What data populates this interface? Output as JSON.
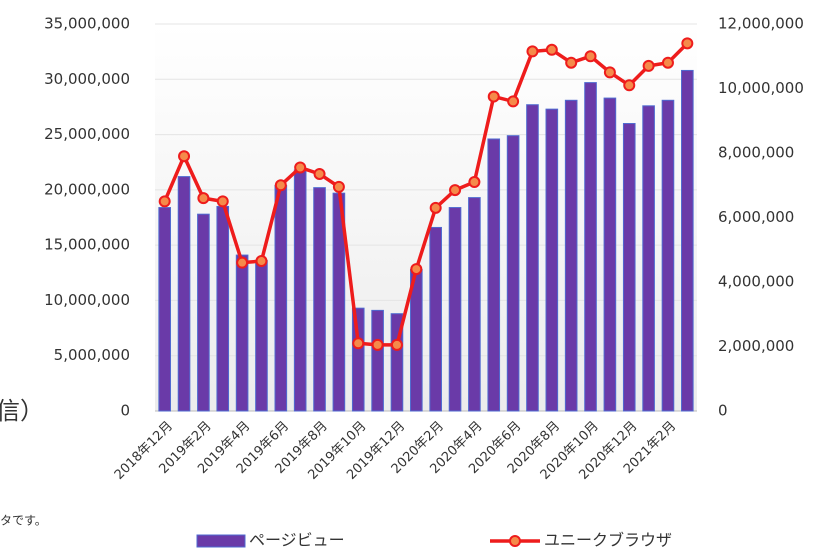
{
  "chart_data": {
    "type": "bar",
    "annotations": [
      "信）",
      "タです。"
    ],
    "categories": [
      "2018年12月",
      null,
      "2019年2月",
      null,
      "2019年4月",
      null,
      "2019年6月",
      null,
      "2019年8月",
      null,
      "2019年10月",
      null,
      "2019年12月",
      null,
      "2020年2月",
      null,
      "2020年4月",
      null,
      "2020年6月",
      null,
      "2020年8月",
      null,
      "2020年10月",
      null,
      "2020年12月",
      null,
      "2021年2月",
      null
    ],
    "series": [
      {
        "name": "ページビュー",
        "type": "bar",
        "axis": "y",
        "color": "#6a3aa8",
        "edge": "#4f6ad0",
        "values": [
          18400000,
          21200000,
          17800000,
          18500000,
          14100000,
          13600000,
          20400000,
          21800000,
          20200000,
          19700000,
          9300000,
          9100000,
          8800000,
          12800000,
          16600000,
          18400000,
          19300000,
          24600000,
          24900000,
          27700000,
          27300000,
          28100000,
          29700000,
          28300000,
          26000000,
          27600000,
          28100000,
          30800000
        ]
      },
      {
        "name": "ユニークブラウザ",
        "type": "line",
        "axis": "y2",
        "color": "#ee1c1c",
        "marker": "#f58a4a",
        "values": [
          6500000,
          7900000,
          6600000,
          6500000,
          4600000,
          4650000,
          7000000,
          7550000,
          7350000,
          6950000,
          2100000,
          2050000,
          2050000,
          4400000,
          6300000,
          6850000,
          7100000,
          9750000,
          9600000,
          11150000,
          11200000,
          10800000,
          11000000,
          10500000,
          10100000,
          10700000,
          10800000,
          11400000
        ]
      }
    ],
    "ylim": [
      0,
      35000000
    ],
    "yticks": [
      0,
      {
        "value": 5000000,
        "label": "5,000,000"
      },
      {
        "value": 10000000,
        "label": "10,000,000"
      },
      {
        "value": 15000000,
        "label": "15,000,000"
      },
      {
        "value": 20000000,
        "label": "20,000,000"
      },
      {
        "value": 25000000,
        "label": "25,000,000"
      },
      {
        "value": 30000000,
        "label": "30,000,000"
      },
      {
        "value": 35000000,
        "label": "35,000,000"
      }
    ],
    "y2lim": [
      0,
      12000000
    ],
    "y2ticks": [
      0,
      {
        "value": 2000000,
        "label": "2,000,000"
      },
      {
        "value": 4000000,
        "label": "4,000,000"
      },
      {
        "value": 6000000,
        "label": "6,000,000"
      },
      {
        "value": 8000000,
        "label": "8,000,000"
      },
      {
        "value": 10000000,
        "label": "10,000,000"
      },
      {
        "value": 12000000,
        "label": "12,000,000"
      }
    ],
    "grid": true,
    "legend": "bottom"
  }
}
